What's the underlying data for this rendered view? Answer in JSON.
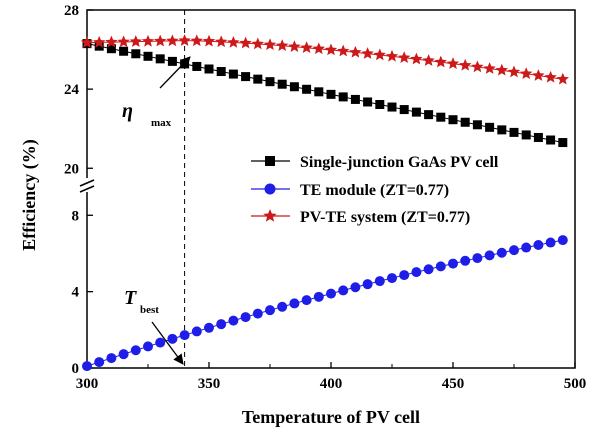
{
  "chart_data": {
    "type": "scatter",
    "xlabel": "Temperature of PV cell",
    "ylabel": "Efficiency (%)",
    "xlim": [
      300,
      500
    ],
    "xticks": [
      "300",
      "350",
      "400",
      "450",
      "500"
    ],
    "y_axis_break": {
      "lower": [
        0,
        8.8
      ],
      "upper": [
        18.8,
        28
      ]
    },
    "yticks_upper": [
      "20",
      "24",
      "28"
    ],
    "yticks_lower": [
      "0",
      "4",
      "8"
    ],
    "grid": false,
    "legend": "right",
    "series": [
      {
        "name": "Single-junction GaAs PV cell",
        "marker": "square",
        "color": "#000000",
        "x_start": 300,
        "x_step": 5,
        "count": 40,
        "y_start": 26.3,
        "y_end": 21.3
      },
      {
        "name": "TE module (ZT=0.77)",
        "marker": "circle",
        "color": "#1e1ee8",
        "x_start": 300,
        "x_step": 5,
        "count": 40,
        "y_start": 0.1,
        "y_end": 6.7
      },
      {
        "name": "PV-TE system (ZT=0.77)",
        "marker": "star",
        "color": "#cc1a1a",
        "x_start": 300,
        "x_step": 5,
        "count": 40,
        "y_start": 26.35,
        "y_peak": 26.45,
        "x_peak": 340,
        "y_end": 24.5
      }
    ],
    "vline_x": 340,
    "annotations": [
      {
        "main": "η",
        "sub": "max"
      },
      {
        "main": "T",
        "sub": "best"
      }
    ]
  }
}
